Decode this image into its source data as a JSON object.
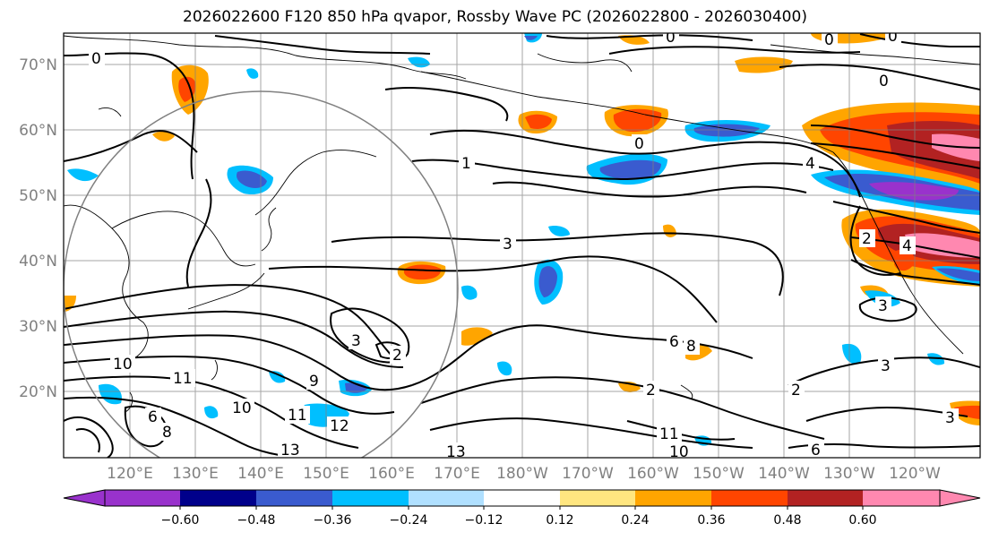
{
  "title": "2026022600 F120 850 hPa qvapor, Rossby Wave PC (2026022800 - 2026030400)",
  "lat_labels": [
    "70°N",
    "60°N",
    "50°N",
    "40°N",
    "30°N",
    "20°N"
  ],
  "lon_labels": [
    "120°E",
    "130°E",
    "140°E",
    "150°E",
    "160°E",
    "170°E",
    "180°W",
    "170°W",
    "160°W",
    "150°W",
    "140°W",
    "130°W",
    "120°W"
  ],
  "contour_labels": [
    "0",
    "0",
    "0",
    "0",
    "0",
    "0",
    "1",
    "4",
    "3",
    "2",
    "2",
    "4",
    "3",
    "3",
    "2",
    "6",
    "8",
    "9",
    "10",
    "11",
    "10",
    "11",
    "12",
    "13",
    "13",
    "10",
    "11",
    "6",
    "3",
    "2",
    "6",
    "8",
    "3"
  ],
  "colorbar": {
    "ticks": [
      "−0.60",
      "−0.48",
      "−0.36",
      "−0.24",
      "−0.12",
      "0.12",
      "0.24",
      "0.36",
      "0.48",
      "0.60"
    ],
    "colors": [
      "#9932cc",
      "#00008b",
      "#3a5bcf",
      "#00bfff",
      "#b0e0ff",
      "#ffffff",
      "#ffe680",
      "#ffa500",
      "#ff4500",
      "#b22222",
      "#ff88b0"
    ]
  },
  "legend_colors": {
    "extend_low": "#9932cc",
    "extend_high": "#ff88b0",
    "grid": "#808080",
    "coast": "#000000"
  }
}
